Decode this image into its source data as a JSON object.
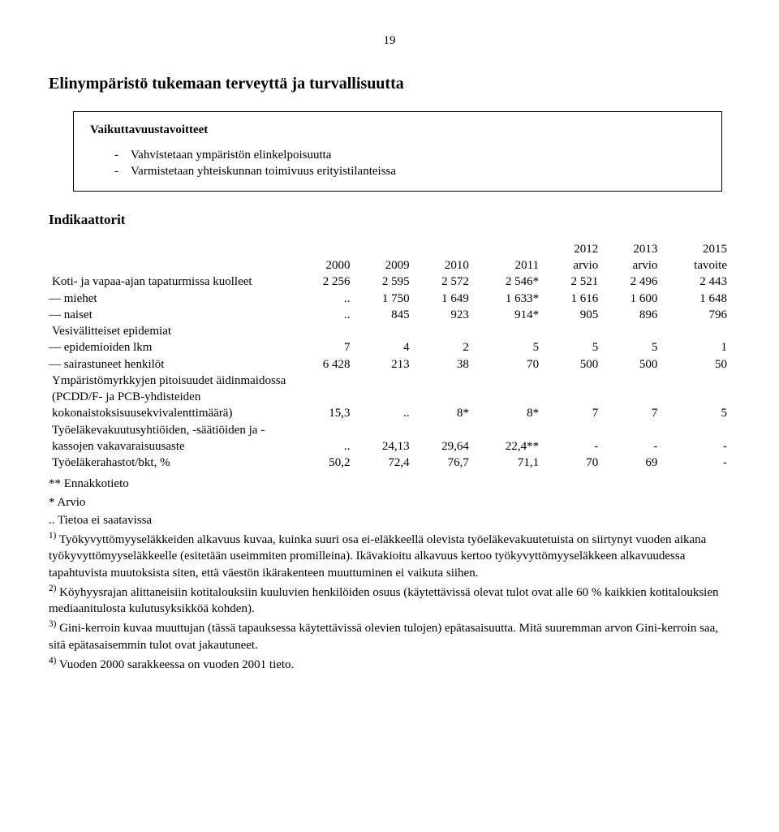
{
  "page_number": "19",
  "heading": "Elinympäristö tukemaan terveyttä ja turvallisuutta",
  "box": {
    "title": "Vaikuttavuustavoitteet",
    "items": [
      "Vahvistetaan ympäristön elinkelpoisuutta",
      "Varmistetaan yhteiskunnan toimivuus erityistilanteissa"
    ]
  },
  "subheading": "Indikaattorit",
  "table": {
    "columns": [
      "",
      "2000",
      "2009",
      "2010",
      "2011",
      "2012 arvio",
      "2013 arvio",
      "2015 tavoite"
    ],
    "rows": [
      {
        "label": "Koti- ja vapaa-ajan tapaturmissa kuolleet",
        "cells": [
          "2 256",
          "2 595",
          "2 572",
          "2 546*",
          "2 521",
          "2 496",
          "2 443"
        ],
        "sub": false
      },
      {
        "label": "— miehet",
        "cells": [
          "..",
          "1 750",
          "1 649",
          "1 633*",
          "1 616",
          "1 600",
          "1 648"
        ],
        "sub": true
      },
      {
        "label": "— naiset",
        "cells": [
          "..",
          "845",
          "923",
          "914*",
          "905",
          "896",
          "796"
        ],
        "sub": true
      },
      {
        "label": "Vesivälitteiset epidemiat",
        "cells": [
          "",
          "",
          "",
          "",
          "",
          "",
          ""
        ],
        "sub": false
      },
      {
        "label": "— epidemioiden lkm",
        "cells": [
          "7",
          "4",
          "2",
          "5",
          "5",
          "5",
          "1"
        ],
        "sub": true
      },
      {
        "label": "— sairastuneet henkilöt",
        "cells": [
          "6 428",
          "213",
          "38",
          "70",
          "500",
          "500",
          "50"
        ],
        "sub": true
      },
      {
        "label": "Ympäristömyrkkyjen pitoisuudet äidinmaidossa (PCDD/F- ja PCB-yhdisteiden kokonaistoksisuusekvivalenttimäärä)",
        "cells": [
          "15,3",
          "..",
          "8*",
          "8*",
          "7",
          "7",
          "5"
        ],
        "sub": false
      },
      {
        "label": "Työeläkevakuutusyhtiöiden, -säätiöiden ja -kassojen vakavaraisuusaste",
        "cells": [
          "..",
          "24,13",
          "29,64",
          "22,4**",
          "-",
          "-",
          "-"
        ],
        "sub": false
      },
      {
        "label": "Työeläkerahastot/bkt, %",
        "cells": [
          "50,2",
          "72,4",
          "76,7",
          "71,1",
          "70",
          "69",
          "-"
        ],
        "sub": false
      }
    ]
  },
  "footnotes": {
    "star2": "** Ennakkotieto",
    "star1": "* Arvio",
    "dots": ".. Tietoa ei saatavissa",
    "n1_pre": "1)",
    "n1": " Työkyvyttömyyseläkkeiden alkavuus kuvaa, kuinka suuri osa ei-eläkkeellä olevista työeläkevakuutetuista on siirtynyt vuoden aikana työkyvyttömyyseläkkeelle (esitetään useimmiten promilleina). Ikävakioitu alkavuus kertoo työkyvyttömyyseläkkeen alkavuudessa tapahtuvista muutoksista siten, että väestön ikärakenteen muuttuminen ei vaikuta siihen.",
    "n2_pre": "2)",
    "n2": " Köyhyysrajan alittaneisiin kotitalouksiin kuuluvien henkilöiden osuus (käytettävissä olevat tulot ovat alle 60 % kaikkien kotitalouksien mediaanitulosta kulutusyksikköä kohden).",
    "n3_pre": "3)",
    "n3": " Gini-kerroin kuvaa muuttujan (tässä tapauksessa käytettävissä olevien tulojen) epätasaisuutta. Mitä suuremman arvon Gini-kerroin saa, sitä epätasaisemmin tulot ovat jakautuneet.",
    "n4_pre": "4)",
    "n4": " Vuoden 2000 sarakkeessa on vuoden 2001 tieto."
  }
}
